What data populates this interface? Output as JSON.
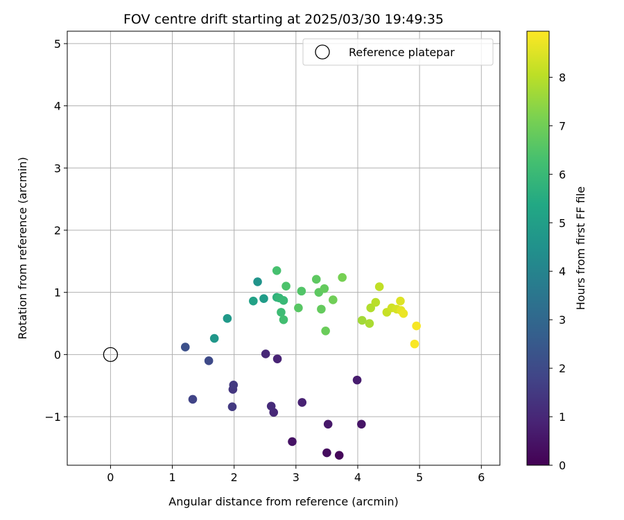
{
  "chart_data": {
    "type": "scatter",
    "title": "FOV centre drift starting at 2025/03/30 19:49:35",
    "xlabel": "Angular distance from reference (arcmin)",
    "ylabel": "Rotation from reference (arcmin)",
    "xlim": [
      -0.7,
      6.3
    ],
    "ylim": [
      -1.78,
      5.2
    ],
    "x_ticks": [
      0,
      1,
      2,
      3,
      4,
      5,
      6
    ],
    "y_ticks": [
      -1,
      0,
      1,
      2,
      3,
      4,
      5
    ],
    "x_tick_labels": [
      "0",
      "1",
      "2",
      "3",
      "4",
      "5",
      "6"
    ],
    "y_tick_labels": [
      "−1",
      "0",
      "1",
      "2",
      "3",
      "4",
      "5"
    ],
    "grid": true,
    "legend": {
      "placement": "top-right",
      "entries": [
        {
          "label": "Reference platepar",
          "marker": "open-circle",
          "color": "#000000"
        }
      ]
    },
    "reference_point": {
      "x": 0,
      "y": 0
    },
    "colorbar": {
      "label": "Hours from first FF file",
      "colormap": "viridis",
      "range": [
        0,
        8.95
      ],
      "ticks": [
        0,
        1,
        2,
        3,
        4,
        5,
        6,
        7,
        8
      ],
      "tick_labels": [
        "0",
        "1",
        "2",
        "3",
        "4",
        "5",
        "6",
        "7",
        "8"
      ]
    },
    "points": [
      {
        "x": 3.7,
        "y": -1.62,
        "hours": 0.15
      },
      {
        "x": 3.5,
        "y": -1.58,
        "hours": 0.3
      },
      {
        "x": 2.94,
        "y": -1.4,
        "hours": 0.45
      },
      {
        "x": 3.52,
        "y": -1.12,
        "hours": 0.6
      },
      {
        "x": 4.06,
        "y": -1.12,
        "hours": 0.5
      },
      {
        "x": 3.99,
        "y": -0.41,
        "hours": 0.7
      },
      {
        "x": 3.1,
        "y": -0.77,
        "hours": 0.85
      },
      {
        "x": 2.64,
        "y": -0.93,
        "hours": 1.0
      },
      {
        "x": 2.6,
        "y": -0.83,
        "hours": 1.1
      },
      {
        "x": 2.7,
        "y": -0.07,
        "hours": 0.9
      },
      {
        "x": 2.51,
        "y": 0.01,
        "hours": 1.0
      },
      {
        "x": 1.97,
        "y": -0.84,
        "hours": 1.5
      },
      {
        "x": 1.98,
        "y": -0.56,
        "hours": 1.4
      },
      {
        "x": 1.99,
        "y": -0.49,
        "hours": 1.5
      },
      {
        "x": 1.33,
        "y": -0.72,
        "hours": 1.8
      },
      {
        "x": 1.59,
        "y": -0.1,
        "hours": 2.0
      },
      {
        "x": 1.21,
        "y": 0.12,
        "hours": 2.2
      },
      {
        "x": 1.68,
        "y": 0.26,
        "hours": 4.7
      },
      {
        "x": 1.89,
        "y": 0.58,
        "hours": 4.8
      },
      {
        "x": 2.38,
        "y": 1.17,
        "hours": 4.6
      },
      {
        "x": 2.48,
        "y": 0.9,
        "hours": 4.9
      },
      {
        "x": 2.31,
        "y": 0.86,
        "hours": 5.1
      },
      {
        "x": 2.69,
        "y": 0.92,
        "hours": 5.7
      },
      {
        "x": 2.73,
        "y": 0.91,
        "hours": 5.9
      },
      {
        "x": 2.8,
        "y": 0.87,
        "hours": 6.0
      },
      {
        "x": 2.76,
        "y": 0.68,
        "hours": 6.1
      },
      {
        "x": 2.8,
        "y": 0.56,
        "hours": 6.2
      },
      {
        "x": 2.69,
        "y": 1.35,
        "hours": 6.3
      },
      {
        "x": 2.84,
        "y": 1.1,
        "hours": 6.4
      },
      {
        "x": 3.09,
        "y": 1.02,
        "hours": 6.5
      },
      {
        "x": 3.04,
        "y": 0.75,
        "hours": 6.6
      },
      {
        "x": 3.33,
        "y": 1.21,
        "hours": 6.7
      },
      {
        "x": 3.37,
        "y": 1.0,
        "hours": 6.7
      },
      {
        "x": 3.46,
        "y": 1.06,
        "hours": 6.8
      },
      {
        "x": 3.41,
        "y": 0.73,
        "hours": 6.8
      },
      {
        "x": 3.48,
        "y": 0.38,
        "hours": 6.9
      },
      {
        "x": 3.6,
        "y": 0.88,
        "hours": 7.0
      },
      {
        "x": 3.75,
        "y": 1.24,
        "hours": 7.1
      },
      {
        "x": 4.07,
        "y": 0.55,
        "hours": 7.7
      },
      {
        "x": 4.19,
        "y": 0.5,
        "hours": 7.8
      },
      {
        "x": 4.21,
        "y": 0.75,
        "hours": 7.9
      },
      {
        "x": 4.29,
        "y": 0.84,
        "hours": 8.0
      },
      {
        "x": 4.35,
        "y": 1.09,
        "hours": 8.1
      },
      {
        "x": 4.47,
        "y": 0.68,
        "hours": 8.2
      },
      {
        "x": 4.55,
        "y": 0.75,
        "hours": 8.3
      },
      {
        "x": 4.63,
        "y": 0.73,
        "hours": 8.4
      },
      {
        "x": 4.69,
        "y": 0.86,
        "hours": 8.5
      },
      {
        "x": 4.7,
        "y": 0.71,
        "hours": 8.6
      },
      {
        "x": 4.74,
        "y": 0.66,
        "hours": 8.7
      },
      {
        "x": 4.95,
        "y": 0.46,
        "hours": 8.85
      },
      {
        "x": 4.92,
        "y": 0.17,
        "hours": 8.9
      }
    ]
  }
}
